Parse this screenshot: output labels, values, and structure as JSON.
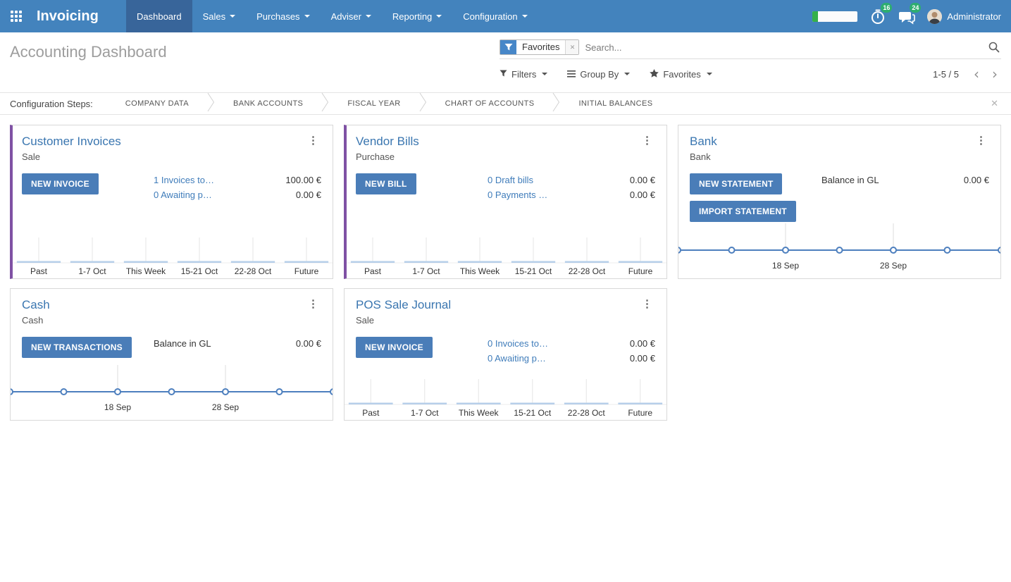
{
  "navbar": {
    "brand": "Invoicing",
    "items": [
      {
        "label": "Dashboard",
        "active": true,
        "caret": false
      },
      {
        "label": "Sales",
        "active": false,
        "caret": true
      },
      {
        "label": "Purchases",
        "active": false,
        "caret": true
      },
      {
        "label": "Adviser",
        "active": false,
        "caret": true
      },
      {
        "label": "Reporting",
        "active": false,
        "caret": true
      },
      {
        "label": "Configuration",
        "active": false,
        "caret": true
      }
    ],
    "systray": {
      "progress_percent": 12,
      "activity_badge": "16",
      "message_badge": "24",
      "user_name": "Administrator"
    }
  },
  "control_panel": {
    "title": "Accounting Dashboard",
    "search": {
      "facet_label": "Favorites",
      "placeholder": "Search..."
    },
    "filter_buttons": [
      {
        "label": "Filters",
        "icon": "filter-icon"
      },
      {
        "label": "Group By",
        "icon": "group-by-icon"
      },
      {
        "label": "Favorites",
        "icon": "star-icon"
      }
    ],
    "pager": {
      "value": "1-5 / 5"
    }
  },
  "config_steps": {
    "label": "Configuration Steps:",
    "steps": [
      "COMPANY DATA",
      "BANK ACCOUNTS",
      "FISCAL YEAR",
      "CHART OF ACCOUNTS",
      "INITIAL BALANCES"
    ]
  },
  "cards": [
    {
      "title": "Customer Invoices",
      "subtitle": "Sale",
      "accent_bar": true,
      "buttons": [
        {
          "label": "NEW INVOICE",
          "name": "new-invoice-button"
        }
      ],
      "rows": [
        {
          "label": "1 Invoices to…",
          "link": true,
          "amount": "100.00 €"
        },
        {
          "label": "0 Awaiting p…",
          "link": true,
          "amount": "0.00 €"
        }
      ],
      "chart": {
        "type": "bar",
        "categories": [
          "Past",
          "1-7 Oct",
          "This Week",
          "15-21 Oct",
          "22-28 Oct",
          "Future"
        ],
        "values": [
          0,
          0,
          0,
          0,
          0,
          0
        ]
      }
    },
    {
      "title": "Vendor Bills",
      "subtitle": "Purchase",
      "accent_bar": true,
      "buttons": [
        {
          "label": "NEW BILL",
          "name": "new-bill-button"
        }
      ],
      "rows": [
        {
          "label": "0 Draft bills",
          "link": true,
          "amount": "0.00 €"
        },
        {
          "label": "0 Payments …",
          "link": true,
          "amount": "0.00 €"
        }
      ],
      "chart": {
        "type": "bar",
        "categories": [
          "Past",
          "1-7 Oct",
          "This Week",
          "15-21 Oct",
          "22-28 Oct",
          "Future"
        ],
        "values": [
          0,
          0,
          0,
          0,
          0,
          0
        ]
      }
    },
    {
      "title": "Bank",
      "subtitle": "Bank",
      "accent_bar": false,
      "buttons": [
        {
          "label": "NEW STATEMENT",
          "name": "new-statement-button"
        },
        {
          "label": "IMPORT STATEMENT",
          "name": "import-statement-button"
        }
      ],
      "rows": [
        {
          "label": "Balance in GL",
          "link": false,
          "amount": "0.00 €"
        }
      ],
      "chart": {
        "type": "line",
        "points": 7,
        "values": [
          0,
          0,
          0,
          0,
          0,
          0,
          0
        ],
        "ticks": [
          {
            "index": 2,
            "label": "18 Sep"
          },
          {
            "index": 4,
            "label": "28 Sep"
          }
        ]
      }
    },
    {
      "title": "Cash",
      "subtitle": "Cash",
      "accent_bar": false,
      "buttons": [
        {
          "label": "NEW TRANSACTIONS",
          "name": "new-transactions-button"
        }
      ],
      "rows": [
        {
          "label": "Balance in GL",
          "link": false,
          "amount": "0.00 €"
        }
      ],
      "chart": {
        "type": "line",
        "points": 7,
        "values": [
          0,
          0,
          0,
          0,
          0,
          0,
          0
        ],
        "ticks": [
          {
            "index": 2,
            "label": "18 Sep"
          },
          {
            "index": 4,
            "label": "28 Sep"
          }
        ]
      }
    },
    {
      "title": "POS Sale Journal",
      "subtitle": "Sale",
      "accent_bar": false,
      "buttons": [
        {
          "label": "NEW INVOICE",
          "name": "new-invoice-button"
        }
      ],
      "rows": [
        {
          "label": "0 Invoices to…",
          "link": true,
          "amount": "0.00 €"
        },
        {
          "label": "0 Awaiting p…",
          "link": true,
          "amount": "0.00 €"
        }
      ],
      "chart": {
        "type": "bar",
        "categories": [
          "Past",
          "1-7 Oct",
          "This Week",
          "15-21 Oct",
          "22-28 Oct",
          "Future"
        ],
        "values": [
          0,
          0,
          0,
          0,
          0,
          0
        ]
      }
    }
  ],
  "colors": {
    "header": "#4383bd",
    "header_active": "#38659a",
    "accent_purple": "#7f51a4",
    "button_blue": "#4a7db8",
    "link_blue": "#3f7cba",
    "title_blue": "#3a76b0",
    "badge_green": "#2ead70",
    "progress_green": "#35b04a",
    "chart_line": "#4d7fbe",
    "chart_bar": "#b7cfe9"
  }
}
